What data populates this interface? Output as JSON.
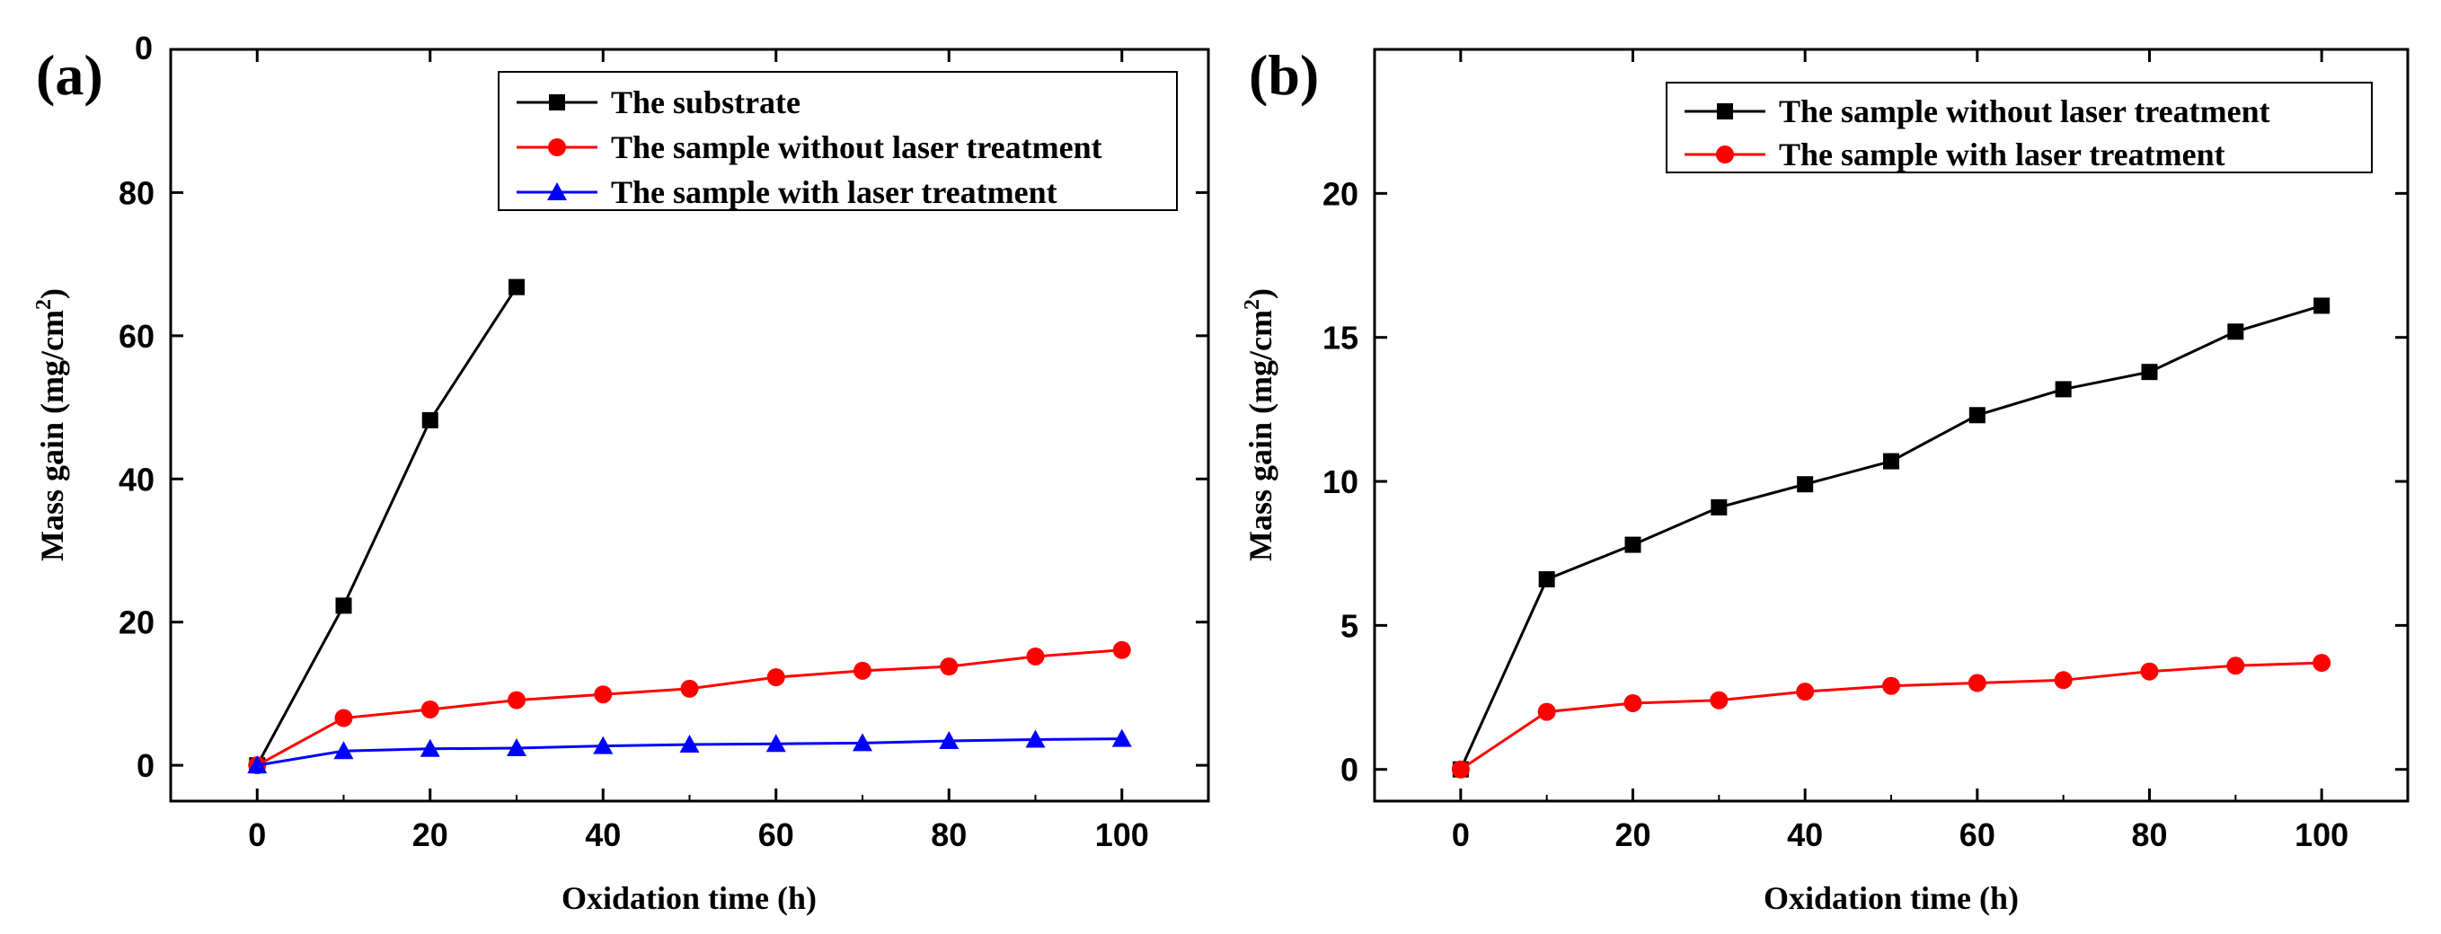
{
  "chart_data": [
    {
      "type": "line",
      "panel_label": "(a)",
      "xlabel": "Oxidation time (h)",
      "ylabel": "Mass gain (mg/cm",
      "ylabel_sup": "2",
      "ylabel_close": ")",
      "xlim": [
        -10,
        110
      ],
      "ylim": [
        -5,
        100
      ],
      "xticks": [
        "0",
        "20",
        "40",
        "60",
        "80",
        "100"
      ],
      "yticks": [
        "0",
        "20",
        "40",
        "60",
        "80"
      ],
      "top_clipped_tick": "0",
      "legend_position": "top-right",
      "series": [
        {
          "name": "The substrate",
          "color": "#000000",
          "marker": "square",
          "x": [
            0,
            10,
            20,
            30
          ],
          "y": [
            0,
            22.3,
            48.2,
            66.8
          ]
        },
        {
          "name": "The sample without laser treatment",
          "color": "#ff0000",
          "marker": "circle",
          "x": [
            0,
            10,
            20,
            30,
            40,
            50,
            60,
            70,
            80,
            90,
            100
          ],
          "y": [
            0,
            6.6,
            7.8,
            9.1,
            9.9,
            10.7,
            12.3,
            13.2,
            13.8,
            15.2,
            16.1
          ]
        },
        {
          "name": "The sample with laser treatment",
          "color": "#0000ff",
          "marker": "triangle",
          "x": [
            0,
            10,
            20,
            30,
            40,
            50,
            60,
            70,
            80,
            90,
            100
          ],
          "y": [
            0,
            2.0,
            2.3,
            2.4,
            2.7,
            2.9,
            3.0,
            3.1,
            3.4,
            3.6,
            3.7
          ]
        }
      ]
    },
    {
      "type": "line",
      "panel_label": "(b)",
      "xlabel": "Oxidation time (h)",
      "ylabel": "Mass gain (mg/cm",
      "ylabel_sup": "2",
      "ylabel_close": ")",
      "xlim": [
        -10,
        110
      ],
      "ylim": [
        -1.1,
        25
      ],
      "xticks": [
        "0",
        "20",
        "40",
        "60",
        "80",
        "100"
      ],
      "yticks": [
        "0",
        "5",
        "10",
        "15",
        "20"
      ],
      "legend_position": "top-right",
      "series": [
        {
          "name": "The sample without laser treatment",
          "color": "#000000",
          "marker": "square",
          "x": [
            0,
            10,
            20,
            30,
            40,
            50,
            60,
            70,
            80,
            90,
            100
          ],
          "y": [
            0,
            6.6,
            7.8,
            9.1,
            9.9,
            10.7,
            12.3,
            13.2,
            13.8,
            15.2,
            16.1
          ]
        },
        {
          "name": "The sample with laser treatment",
          "color": "#ff0000",
          "marker": "circle",
          "x": [
            0,
            10,
            20,
            30,
            40,
            50,
            60,
            70,
            80,
            90,
            100
          ],
          "y": [
            0,
            2.0,
            2.3,
            2.4,
            2.7,
            2.9,
            3.0,
            3.1,
            3.4,
            3.6,
            3.7
          ]
        }
      ]
    }
  ]
}
